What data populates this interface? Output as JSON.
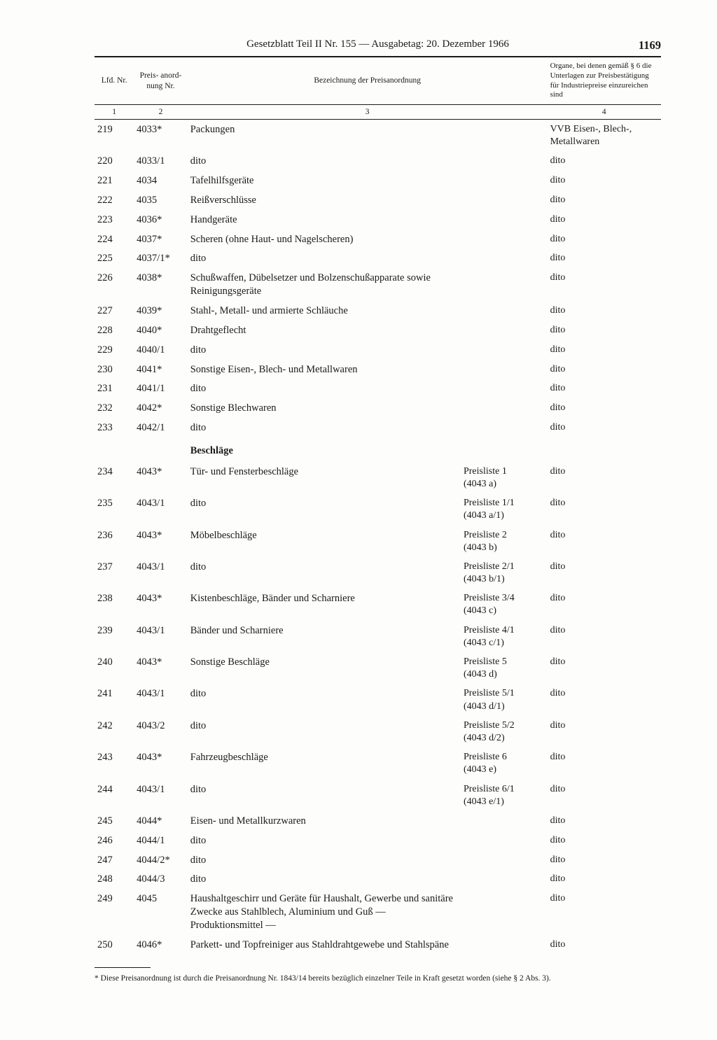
{
  "header": {
    "title": "Gesetzblatt Teil II Nr. 155 — Ausgabetag: 20. Dezember 1966",
    "page_number": "1169"
  },
  "table": {
    "columns": {
      "c1": "Lfd.\nNr.",
      "c2": "Preis-\nanord-\nnung Nr.",
      "c3": "Bezeichnung der Preisanordnung",
      "c4": "Organe, bei denen gemäß § 6 die Unterlagen zur Preisbestätigung für Industriepreise einzureichen sind"
    },
    "col_numbers": {
      "n1": "1",
      "n2": "2",
      "n3": "3",
      "n4": "4"
    },
    "rows": [
      {
        "lfd": "219",
        "pnr": "4033*",
        "bez": "Packungen",
        "pl": "",
        "org": "VVB Eisen-, Blech-, Metallwaren"
      },
      {
        "lfd": "220",
        "pnr": "4033/1",
        "bez": "dito",
        "pl": "",
        "org": "dito"
      },
      {
        "lfd": "221",
        "pnr": "4034",
        "bez": "Tafelhilfsgeräte",
        "pl": "",
        "org": "dito"
      },
      {
        "lfd": "222",
        "pnr": "4035",
        "bez": "Reißverschlüsse",
        "pl": "",
        "org": "dito"
      },
      {
        "lfd": "223",
        "pnr": "4036*",
        "bez": "Handgeräte",
        "pl": "",
        "org": "dito"
      },
      {
        "lfd": "224",
        "pnr": "4037*",
        "bez": "Scheren (ohne Haut- und Nagelscheren)",
        "pl": "",
        "org": "dito"
      },
      {
        "lfd": "225",
        "pnr": "4037/1*",
        "bez": "dito",
        "pl": "",
        "org": "dito"
      },
      {
        "lfd": "226",
        "pnr": "4038*",
        "bez": "Schußwaffen, Dübelsetzer und Bolzenschußapparate sowie Reinigungsgeräte",
        "pl": "",
        "org": "dito"
      },
      {
        "lfd": "227",
        "pnr": "4039*",
        "bez": "Stahl-, Metall- und armierte Schläuche",
        "pl": "",
        "org": "dito"
      },
      {
        "lfd": "228",
        "pnr": "4040*",
        "bez": "Drahtgeflecht",
        "pl": "",
        "org": "dito"
      },
      {
        "lfd": "229",
        "pnr": "4040/1",
        "bez": "dito",
        "pl": "",
        "org": "dito"
      },
      {
        "lfd": "230",
        "pnr": "4041*",
        "bez": "Sonstige Eisen-, Blech- und Metallwaren",
        "pl": "",
        "org": "dito"
      },
      {
        "lfd": "231",
        "pnr": "4041/1",
        "bez": "dito",
        "pl": "",
        "org": "dito"
      },
      {
        "lfd": "232",
        "pnr": "4042*",
        "bez": "Sonstige Blechwaren",
        "pl": "",
        "org": "dito"
      },
      {
        "lfd": "233",
        "pnr": "4042/1",
        "bez": "dito",
        "pl": "",
        "org": "dito"
      },
      {
        "section": true,
        "bez": "Beschläge"
      },
      {
        "lfd": "234",
        "pnr": "4043*",
        "bez": "Tür- und Fensterbeschläge",
        "pl": "Preisliste 1\n(4043 a)",
        "org": "dito"
      },
      {
        "lfd": "235",
        "pnr": "4043/1",
        "bez": "dito",
        "pl": "Preisliste 1/1\n(4043 a/1)",
        "org": "dito"
      },
      {
        "lfd": "236",
        "pnr": "4043*",
        "bez": "Möbelbeschläge",
        "pl": "Preisliste 2\n(4043 b)",
        "org": "dito"
      },
      {
        "lfd": "237",
        "pnr": "4043/1",
        "bez": "dito",
        "pl": "Preisliste 2/1\n(4043 b/1)",
        "org": "dito"
      },
      {
        "lfd": "238",
        "pnr": "4043*",
        "bez": "Kistenbeschläge, Bänder und Scharniere",
        "pl": "Preisliste 3/4\n(4043 c)",
        "org": "dito"
      },
      {
        "lfd": "239",
        "pnr": "4043/1",
        "bez": "Bänder und Scharniere",
        "pl": "Preisliste 4/1\n(4043 c/1)",
        "org": "dito"
      },
      {
        "lfd": "240",
        "pnr": "4043*",
        "bez": "Sonstige Beschläge",
        "pl": "Preisliste 5\n(4043 d)",
        "org": "dito"
      },
      {
        "lfd": "241",
        "pnr": "4043/1",
        "bez": "dito",
        "pl": "Preisliste 5/1\n(4043 d/1)",
        "org": "dito"
      },
      {
        "lfd": "242",
        "pnr": "4043/2",
        "bez": "dito",
        "pl": "Preisliste 5/2\n(4043 d/2)",
        "org": "dito"
      },
      {
        "lfd": "243",
        "pnr": "4043*",
        "bez": "Fahrzeugbeschläge",
        "pl": "Preisliste 6\n(4043 e)",
        "org": "dito"
      },
      {
        "lfd": "244",
        "pnr": "4043/1",
        "bez": "dito",
        "pl": "Preisliste 6/1\n(4043 e/1)",
        "org": "dito"
      },
      {
        "lfd": "245",
        "pnr": "4044*",
        "bez": "Eisen- und Metallkurzwaren",
        "pl": "",
        "org": "dito"
      },
      {
        "lfd": "246",
        "pnr": "4044/1",
        "bez": "dito",
        "pl": "",
        "org": "dito"
      },
      {
        "lfd": "247",
        "pnr": "4044/2*",
        "bez": "dito",
        "pl": "",
        "org": "dito"
      },
      {
        "lfd": "248",
        "pnr": "4044/3",
        "bez": "dito",
        "pl": "",
        "org": "dito"
      },
      {
        "lfd": "249",
        "pnr": "4045",
        "bez": "Haushaltgeschirr und Geräte für Haushalt, Gewerbe und sanitäre Zwecke aus Stahlblech, Aluminium und Guß — Produktionsmittel —",
        "pl": "",
        "org": "dito"
      },
      {
        "lfd": "250",
        "pnr": "4046*",
        "bez": "Parkett- und Topfreiniger aus Stahldrahtgewebe und Stahlspäne",
        "pl": "",
        "org": "dito"
      }
    ]
  },
  "footnote": "* Diese Preisanordnung ist durch die Preisanordnung Nr. 1843/14 bereits bezüglich einzelner Teile in Kraft gesetzt worden (siehe § 2 Abs. 3)."
}
